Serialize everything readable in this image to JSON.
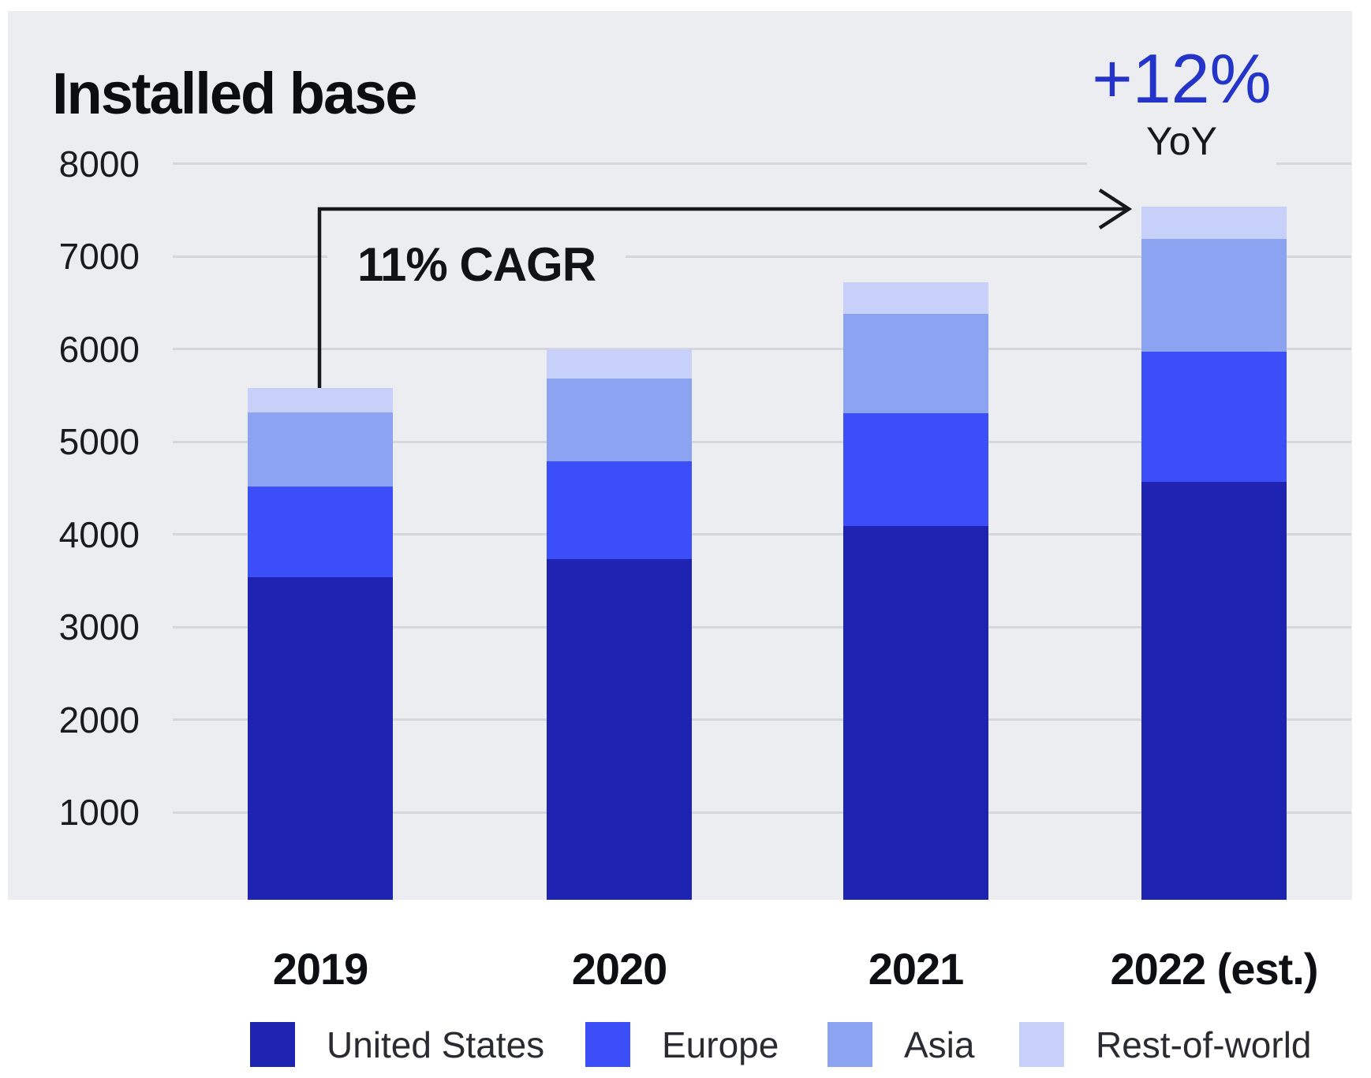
{
  "header": {
    "title": "Installed base"
  },
  "annotations": {
    "cagr_label": "11% CAGR",
    "yoy_value": "+12%",
    "yoy_label": "YoY"
  },
  "colors": {
    "page_bg": "#ffffff",
    "panel_bg": "#ecedf1",
    "gridline": "#d5d7dc",
    "arrow": "#17181c",
    "yoy_accent": "#2433c8",
    "united_states": "#1e23b2",
    "europe": "#3b4ef8",
    "asia": "#8ba3f0",
    "rest_of_world": "#c6d0f8"
  },
  "chart_data": {
    "type": "bar",
    "stacked": true,
    "title": "Installed base",
    "categories": [
      "2019",
      "2020",
      "2021",
      "2022 (est.)"
    ],
    "series": [
      {
        "name": "United States",
        "color": "#1e23b2",
        "values": [
          3540,
          3730,
          4090,
          4570
        ]
      },
      {
        "name": "Europe",
        "color": "#3b4ef8",
        "values": [
          980,
          1060,
          1220,
          1400
        ]
      },
      {
        "name": "Asia",
        "color": "#8ba3f0",
        "values": [
          800,
          890,
          1070,
          1220
        ]
      },
      {
        "name": "Rest-of-world",
        "color": "#c6d0f8",
        "values": [
          260,
          320,
          340,
          350
        ]
      }
    ],
    "totals": [
      5580,
      6000,
      6720,
      7540
    ],
    "xlabel": "",
    "ylabel": "",
    "ylim": [
      0,
      8000
    ],
    "y_ticks": [
      8000,
      7000,
      6000,
      5000,
      4000,
      3000,
      2000,
      1000
    ],
    "grid": true,
    "legend_position": "bottom",
    "annotations": [
      {
        "type": "elbow-arrow",
        "text": "11% CAGR",
        "from_category": "2019",
        "to_category": "2022 (est.)"
      },
      {
        "type": "callout",
        "text": "+12% YoY",
        "at_category": "2022 (est.)"
      }
    ]
  }
}
